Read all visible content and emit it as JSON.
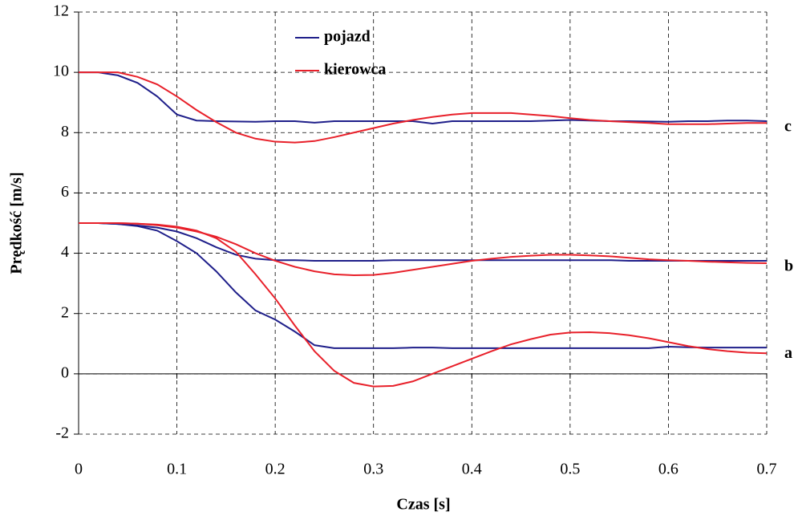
{
  "chart_data": {
    "type": "line",
    "xlabel": "Czas [s]",
    "ylabel": "Prędkość [m/s]",
    "x": [
      0,
      0.02,
      0.04,
      0.06,
      0.08,
      0.1,
      0.12,
      0.14,
      0.16,
      0.18,
      0.2,
      0.22,
      0.24,
      0.26,
      0.28,
      0.3,
      0.32,
      0.34,
      0.36,
      0.38,
      0.4,
      0.42,
      0.44,
      0.46,
      0.48,
      0.5,
      0.52,
      0.54,
      0.56,
      0.58,
      0.6,
      0.62,
      0.64,
      0.66,
      0.68,
      0.7
    ],
    "series": [
      {
        "name": "pojazd",
        "color": "#1f1f8a",
        "values": [
          10,
          10,
          9.9,
          9.65,
          9.2,
          8.6,
          8.4,
          8.38,
          8.37,
          8.36,
          8.38,
          8.38,
          8.33,
          8.38,
          8.38,
          8.38,
          8.38,
          8.38,
          8.3,
          8.38,
          8.38,
          8.38,
          8.38,
          8.38,
          8.4,
          8.42,
          8.4,
          8.38,
          8.38,
          8.37,
          8.36,
          8.38,
          8.38,
          8.4,
          8.4,
          8.38
        ]
      },
      {
        "name": "pojazd",
        "color": "#1f1f8a",
        "values": [
          5,
          5,
          4.97,
          4.92,
          4.85,
          4.72,
          4.5,
          4.2,
          3.95,
          3.82,
          3.77,
          3.77,
          3.75,
          3.75,
          3.75,
          3.75,
          3.77,
          3.77,
          3.77,
          3.77,
          3.77,
          3.77,
          3.77,
          3.77,
          3.77,
          3.77,
          3.77,
          3.77,
          3.75,
          3.75,
          3.75,
          3.75,
          3.75,
          3.75,
          3.75,
          3.75
        ]
      },
      {
        "name": "pojazd",
        "color": "#1f1f8a",
        "values": [
          5,
          5,
          4.97,
          4.9,
          4.75,
          4.4,
          4.0,
          3.4,
          2.7,
          2.1,
          1.8,
          1.4,
          0.95,
          0.85,
          0.85,
          0.85,
          0.85,
          0.87,
          0.87,
          0.85,
          0.85,
          0.85,
          0.85,
          0.85,
          0.85,
          0.85,
          0.85,
          0.85,
          0.85,
          0.85,
          0.9,
          0.88,
          0.87,
          0.87,
          0.87,
          0.87
        ]
      },
      {
        "name": "kierowca",
        "color": "#e8202a",
        "values": [
          10,
          10,
          10,
          9.85,
          9.6,
          9.2,
          8.75,
          8.35,
          8.0,
          7.8,
          7.7,
          7.67,
          7.72,
          7.85,
          8.0,
          8.15,
          8.3,
          8.42,
          8.52,
          8.6,
          8.65,
          8.65,
          8.65,
          8.6,
          8.55,
          8.48,
          8.42,
          8.38,
          8.35,
          8.32,
          8.28,
          8.28,
          8.28,
          8.3,
          8.32,
          8.32
        ]
      },
      {
        "name": "kierowca",
        "color": "#e8202a",
        "values": [
          5,
          5,
          5,
          4.98,
          4.93,
          4.85,
          4.72,
          4.55,
          4.3,
          4.0,
          3.75,
          3.55,
          3.4,
          3.3,
          3.27,
          3.28,
          3.35,
          3.45,
          3.55,
          3.65,
          3.75,
          3.82,
          3.88,
          3.92,
          3.95,
          3.95,
          3.93,
          3.9,
          3.85,
          3.8,
          3.77,
          3.75,
          3.72,
          3.7,
          3.68,
          3.67
        ]
      },
      {
        "name": "kierowca",
        "color": "#e8202a",
        "values": [
          5,
          5,
          5,
          4.98,
          4.95,
          4.88,
          4.75,
          4.5,
          4.05,
          3.3,
          2.5,
          1.6,
          0.75,
          0.1,
          -0.3,
          -0.42,
          -0.4,
          -0.25,
          0,
          0.25,
          0.5,
          0.75,
          0.98,
          1.15,
          1.3,
          1.37,
          1.38,
          1.35,
          1.28,
          1.18,
          1.05,
          0.92,
          0.82,
          0.75,
          0.7,
          0.68
        ]
      }
    ],
    "curve_labels": [
      "c",
      "b",
      "a"
    ],
    "xlim": [
      0,
      0.7
    ],
    "xticks": [
      0,
      0.1,
      0.2,
      0.3,
      0.4,
      0.5,
      0.6,
      0.7
    ],
    "ylim": [
      -2,
      12
    ],
    "yticks": [
      -2,
      0,
      2,
      4,
      6,
      8,
      10,
      12
    ],
    "grid": true
  }
}
